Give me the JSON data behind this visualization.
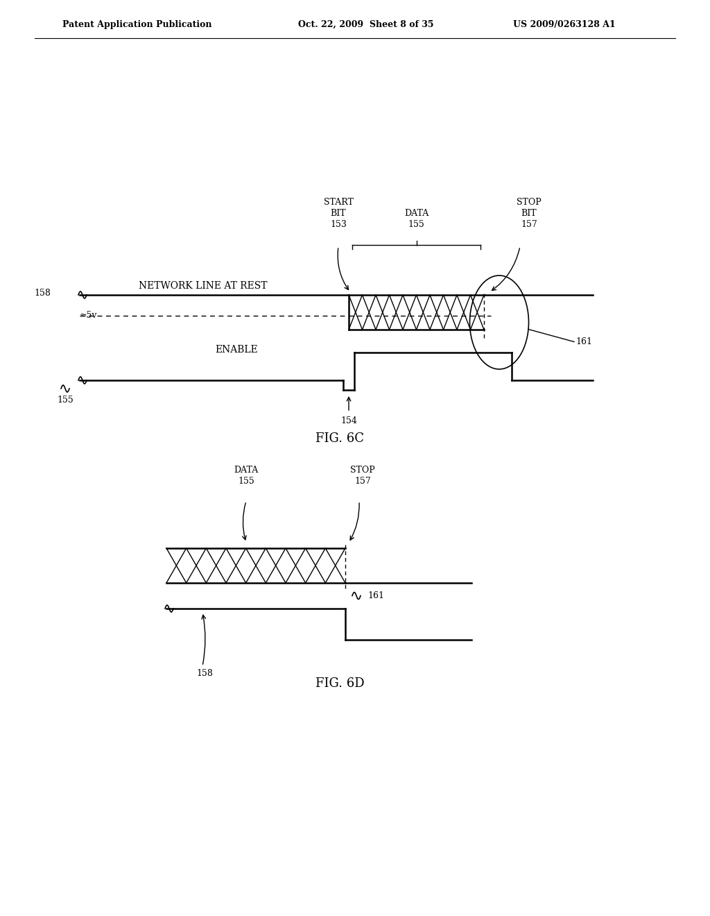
{
  "bg_color": "#ffffff",
  "text_color": "#000000",
  "line_color": "#000000",
  "header_left": "Patent Application Publication",
  "header_mid": "Oct. 22, 2009  Sheet 8 of 35",
  "header_right": "US 2009/0263128 A1",
  "fig6c_label": "FIG. 6C",
  "fig6d_label": "FIG. 6D",
  "approx5v": "≈5v",
  "fig6c": {
    "network_label": "NETWORK LINE AT REST",
    "approx5v_label": "≈5v",
    "enable_label": "ENABLE",
    "start_bit_label": "START\nBIT\n153",
    "data_label": "DATA\n155",
    "stop_bit_label": "STOP\nBIT\n157",
    "label_158": "158",
    "label_155": "155",
    "label_154": "154",
    "label_161": "161"
  },
  "fig6d": {
    "data_label": "DATA\n155",
    "stop_label": "STOP\n157",
    "label_158": "158",
    "label_161": "161"
  }
}
